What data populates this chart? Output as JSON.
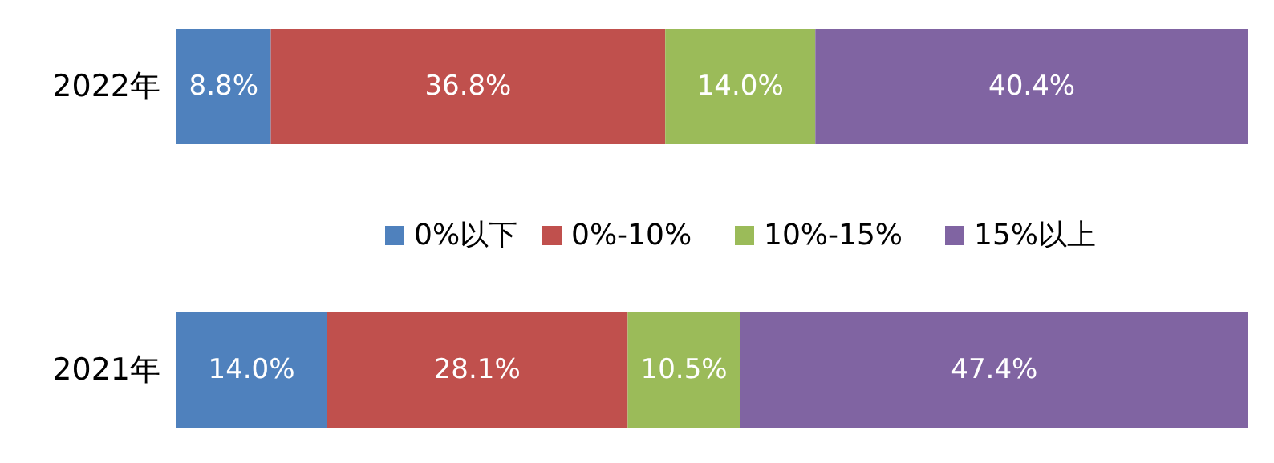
{
  "chart_data": {
    "type": "bar",
    "orientation": "horizontal",
    "stacked": true,
    "categories": [
      "2022年",
      "2021年"
    ],
    "series": [
      {
        "name": "0%以下",
        "color": "#4f81bd",
        "values": [
          8.8,
          14.0
        ],
        "value_labels": [
          "8.8%",
          "14.0%"
        ]
      },
      {
        "name": "0%-10%",
        "color": "#c0504d",
        "values": [
          36.8,
          28.1
        ],
        "value_labels": [
          "36.8%",
          "28.1%"
        ]
      },
      {
        "name": "10%-15%",
        "color": "#9bbb59",
        "values": [
          14.0,
          10.5
        ],
        "value_labels": [
          "14.0%",
          "10.5%"
        ]
      },
      {
        "name": "15%以上",
        "color": "#8064a2",
        "values": [
          40.4,
          47.4
        ],
        "value_labels": [
          "40.4%",
          "47.4%"
        ]
      }
    ],
    "legend": "bottom"
  }
}
